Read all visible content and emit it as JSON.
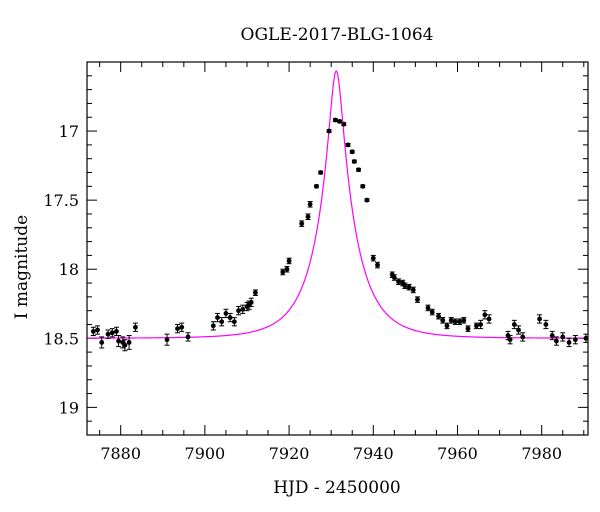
{
  "chart_data": {
    "type": "scatter",
    "title": "OGLE-2017-BLG-1064",
    "xlabel": "HJD - 2450000",
    "ylabel": "I magnitude",
    "xlim": [
      7872,
      7991
    ],
    "ylim": [
      19.2,
      16.5
    ],
    "y_inverted": true,
    "xticks": [
      7880,
      7900,
      7920,
      7940,
      7960,
      7980
    ],
    "yticks": [
      17,
      17.5,
      18,
      18.5,
      19
    ],
    "grid": false,
    "point_color": "#000000",
    "model_color": "#ff00ff",
    "model": {
      "t0": 7931.2,
      "u0": 0.17,
      "tE": 9.0,
      "I_base": 18.5
    },
    "series": [
      {
        "kind": "data",
        "x": [
          7873.5,
          7874.5,
          7875.5,
          7877.0,
          7878.0,
          7879.0,
          7879.5,
          7880.5,
          7881.0,
          7882.0,
          7883.5,
          7891.0,
          7893.5,
          7894.5,
          7896.0,
          7902.0,
          7903.0,
          7904.0,
          7905.0,
          7906.0,
          7907.0,
          7908.0,
          7909.0,
          7910.0,
          7910.5,
          7911.0,
          7912.0,
          7918.5,
          7919.5,
          7920.0,
          7923.0,
          7924.5,
          7925.0,
          7926.5,
          7927.5,
          7929.5,
          7931.0,
          7932.0,
          7933.0,
          7934.0,
          7935.0,
          7935.5,
          7936.5,
          7937.5,
          7938.5,
          7940.0,
          7941.0,
          7944.5,
          7945.0,
          7946.0,
          7947.0,
          7947.5,
          7948.5,
          7949.5,
          7950.5,
          7953.0,
          7954.0,
          7955.5,
          7956.5,
          7957.5,
          7958.5,
          7959.5,
          7960.5,
          7961.5,
          7962.5,
          7964.5,
          7965.5,
          7966.5,
          7967.5,
          7972.0,
          7972.5,
          7973.5,
          7974.5,
          7975.5,
          7979.5,
          7981.0,
          7982.5,
          7983.5,
          7985.0,
          7986.5,
          7988.0,
          7990.5
        ],
        "y": [
          18.45,
          18.44,
          18.53,
          18.47,
          18.46,
          18.45,
          18.52,
          18.53,
          18.55,
          18.53,
          18.42,
          18.51,
          18.43,
          18.42,
          18.49,
          18.41,
          18.35,
          18.38,
          18.32,
          18.35,
          18.38,
          18.3,
          18.29,
          18.27,
          18.26,
          18.24,
          18.17,
          18.02,
          18.0,
          17.94,
          17.67,
          17.62,
          17.53,
          17.4,
          17.3,
          17.0,
          16.92,
          16.93,
          16.95,
          17.1,
          17.15,
          17.22,
          17.28,
          17.4,
          17.5,
          17.92,
          17.97,
          18.04,
          18.06,
          18.09,
          18.1,
          18.12,
          18.13,
          18.15,
          18.22,
          18.28,
          18.31,
          18.34,
          18.37,
          18.41,
          18.37,
          18.38,
          18.38,
          18.37,
          18.43,
          18.41,
          18.4,
          18.33,
          18.36,
          18.48,
          18.51,
          18.4,
          18.44,
          18.49,
          18.36,
          18.4,
          18.48,
          18.52,
          18.49,
          18.53,
          18.51,
          18.5
        ],
        "yerr": [
          0.03,
          0.03,
          0.04,
          0.03,
          0.03,
          0.03,
          0.04,
          0.04,
          0.04,
          0.05,
          0.03,
          0.04,
          0.03,
          0.03,
          0.03,
          0.03,
          0.03,
          0.03,
          0.03,
          0.03,
          0.03,
          0.03,
          0.03,
          0.03,
          0.03,
          0.03,
          0.02,
          0.02,
          0.02,
          0.02,
          0.02,
          0.02,
          0.02,
          0.01,
          0.01,
          0.01,
          0.01,
          0.01,
          0.01,
          0.01,
          0.01,
          0.01,
          0.01,
          0.01,
          0.01,
          0.02,
          0.02,
          0.02,
          0.02,
          0.02,
          0.02,
          0.02,
          0.02,
          0.02,
          0.02,
          0.02,
          0.02,
          0.02,
          0.02,
          0.02,
          0.02,
          0.02,
          0.02,
          0.02,
          0.02,
          0.02,
          0.03,
          0.03,
          0.03,
          0.03,
          0.03,
          0.03,
          0.03,
          0.03,
          0.03,
          0.03,
          0.03,
          0.03,
          0.03,
          0.03,
          0.03,
          0.03
        ]
      }
    ]
  }
}
